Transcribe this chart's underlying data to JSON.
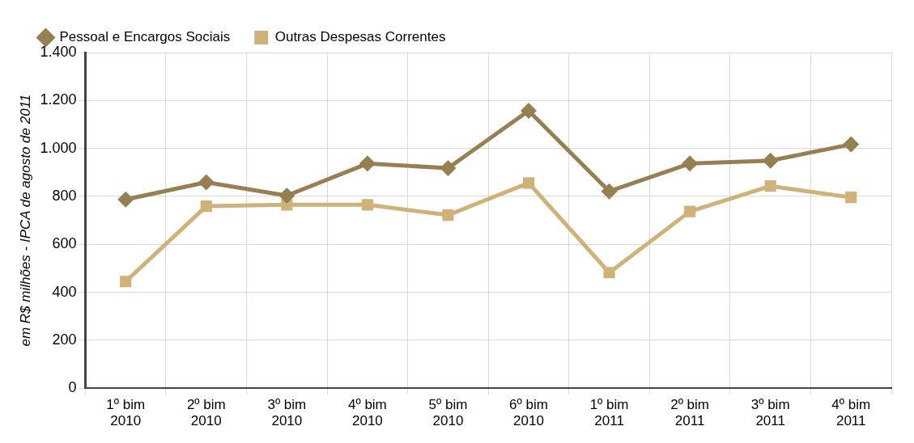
{
  "chart_data": {
    "type": "line",
    "ylabel": "em R$ milhões - IPCA de agosto de 2011",
    "categories": [
      "1º bim 2010",
      "2º bim 2010",
      "3º bim 2010",
      "4º bim 2010",
      "5º bim 2010",
      "6º bim 2010",
      "1º bim 2011",
      "2º bim 2011",
      "3º bim 2011",
      "4º bim 2011"
    ],
    "series": [
      {
        "name": "Pessoal e Encargos Sociais",
        "color": "#967f52",
        "marker": "diamond",
        "values": [
          787,
          859,
          803,
          937,
          918,
          1157,
          821,
          937,
          949,
          1017
        ]
      },
      {
        "name": "Outras Despesas Correntes",
        "color": "#cfb27a",
        "marker": "square",
        "values": [
          445,
          759,
          765,
          765,
          722,
          856,
          482,
          737,
          843,
          796
        ]
      }
    ],
    "ylim": [
      0,
      1400
    ],
    "yticks": [
      0,
      200,
      400,
      600,
      800,
      {
        "value": 1000,
        "label": "1.000"
      },
      {
        "value": 1200,
        "label": "1.200"
      },
      {
        "value": 1400,
        "label": "1.400"
      }
    ],
    "grid": true,
    "legend": "top left",
    "line_style": "solid"
  }
}
